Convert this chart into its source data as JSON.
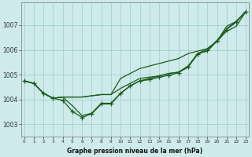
{
  "xlabel": "Graphe pression niveau de la mer (hPa)",
  "x_ticks": [
    0,
    1,
    2,
    3,
    4,
    5,
    6,
    7,
    8,
    9,
    10,
    11,
    12,
    13,
    14,
    15,
    16,
    17,
    18,
    19,
    20,
    21,
    22,
    23
  ],
  "ylim": [
    1002.5,
    1007.9
  ],
  "yticks": [
    1003,
    1004,
    1005,
    1006,
    1007
  ],
  "bg_color": "#ceeaea",
  "grid_color": "#99cccc",
  "line_color": "#1a5c1a",
  "smooth_series": [
    [
      1004.75,
      1004.65,
      1004.25,
      1004.05,
      1004.1,
      1004.1,
      1004.1,
      1004.15,
      1004.2,
      1004.2,
      1004.85,
      1005.05,
      1005.25,
      1005.35,
      1005.45,
      1005.55,
      1005.65,
      1005.85,
      1005.95,
      1006.05,
      1006.35,
      1006.95,
      1007.15,
      1007.55
    ],
    [
      1004.75,
      1004.65,
      1004.25,
      1004.05,
      1004.1,
      1004.1,
      1004.1,
      1004.15,
      1004.2,
      1004.2,
      1004.45,
      1004.65,
      1004.85,
      1004.9,
      1004.95,
      1005.05,
      1005.1,
      1005.3,
      1005.85,
      1006.05,
      1006.35,
      1006.75,
      1006.95,
      1007.55
    ],
    [
      1004.75,
      1004.65,
      1004.25,
      1004.05,
      1004.1,
      1003.75,
      1003.35,
      1003.45,
      1003.85,
      1003.85,
      1004.25,
      1004.55,
      1004.75,
      1004.85,
      1004.95,
      1005.05,
      1005.1,
      1005.35,
      1005.85,
      1005.95,
      1006.35,
      1006.85,
      1007.15,
      1007.55
    ]
  ],
  "marker_series": [
    [
      1004.75,
      1004.65,
      1004.25,
      1004.05,
      1003.97,
      1003.52,
      1003.28,
      1003.42,
      1003.82,
      1003.82,
      1004.25,
      1004.55,
      1004.75,
      1004.8,
      1004.9,
      1004.98,
      1005.08,
      1005.32,
      1005.82,
      1005.98,
      1006.38,
      1006.82,
      1007.12,
      1007.55
    ]
  ]
}
